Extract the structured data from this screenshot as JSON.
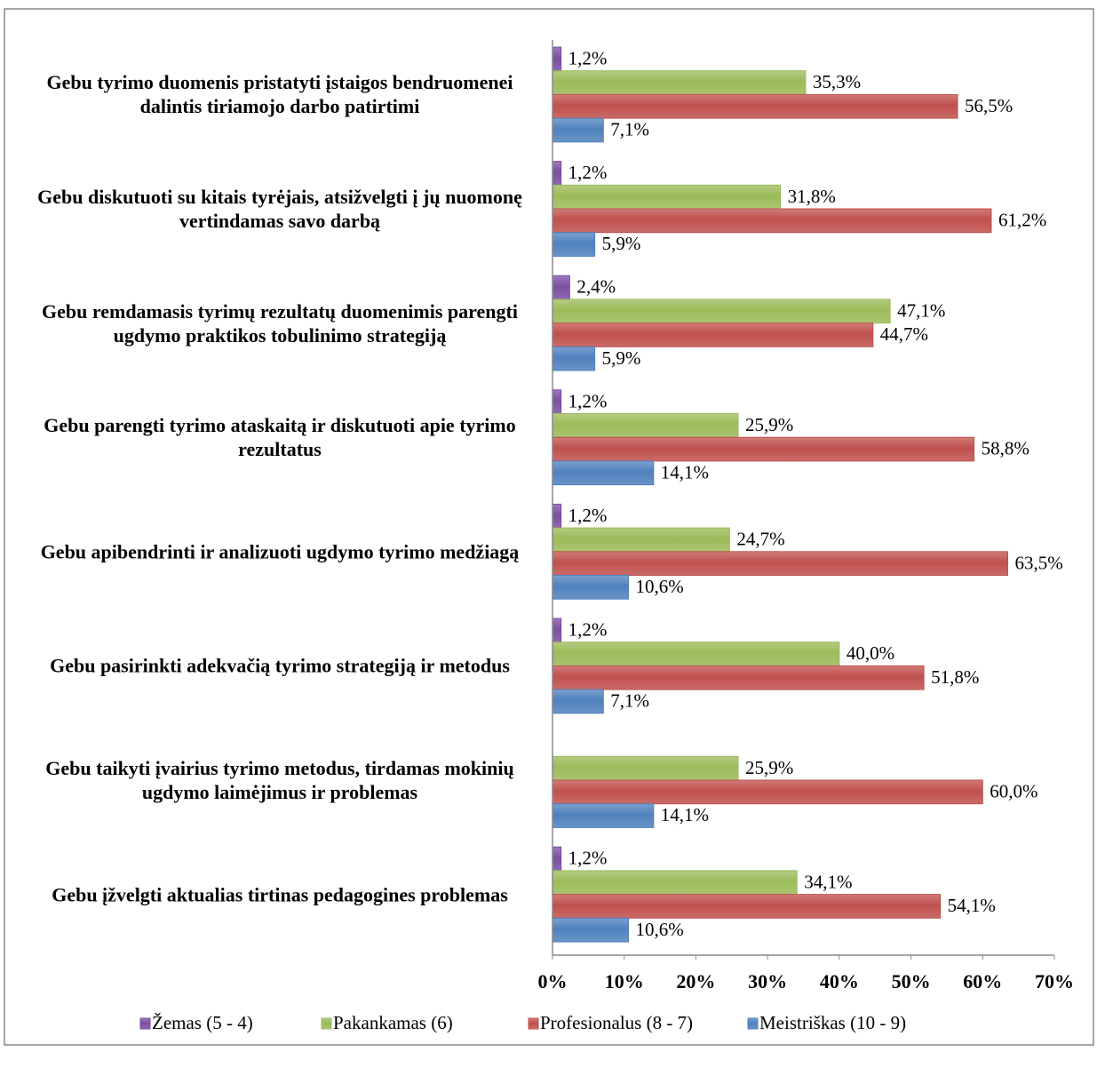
{
  "chart_data": {
    "type": "hbar",
    "categories": [
      "Gebu tyrimo duomenis pristatyti įstaigos bendruomenei dalintis tiriamojo darbo patirtimi",
      "Gebu diskutuoti su kitais tyrėjais, atsižvelgti į jų nuomonę vertindamas savo darbą",
      "Gebu remdamasis tyrimų rezultatų duomenimis parengti ugdymo praktikos tobulinimo strategiją",
      "Gebu parengti tyrimo ataskaitą ir diskutuoti apie tyrimo rezultatus",
      "Gebu apibendrinti ir analizuoti ugdymo tyrimo medžiagą",
      "Gebu pasirinkti adekvačią tyrimo strategiją ir metodus",
      "Gebu taikyti įvairius tyrimo metodus, tirdamas mokinių ugdymo laimėjimus ir problemas",
      "Gebu įžvelgti aktualias tirtinas pedagogines problemas"
    ],
    "series": [
      {
        "name": "Žemas (5 - 4)",
        "color": "#7b4ea3",
        "values": [
          1.2,
          1.2,
          2.4,
          1.2,
          1.2,
          1.2,
          null,
          1.2
        ],
        "value_labels": [
          "1,2%",
          "1,2%",
          "2,4%",
          "1,2%",
          "1,2%",
          "1,2%",
          null,
          "1,2%"
        ]
      },
      {
        "name": "Pakankamas (6)",
        "color": "#9bbb59",
        "values": [
          35.3,
          31.8,
          47.1,
          25.9,
          24.7,
          40.0,
          25.9,
          34.1
        ],
        "value_labels": [
          "35,3%",
          "31,8%",
          "47,1%",
          "25,9%",
          "24,7%",
          "40,0%",
          "25,9%",
          "34,1%"
        ]
      },
      {
        "name": "Profesionalus (8 - 7)",
        "color": "#c0504d",
        "values": [
          56.5,
          61.2,
          44.7,
          58.8,
          63.5,
          51.8,
          60.0,
          54.1
        ],
        "value_labels": [
          "56,5%",
          "61,2%",
          "44,7%",
          "58,8%",
          "63,5%",
          "51,8%",
          "60,0%",
          "54,1%"
        ]
      },
      {
        "name": "Meistriškas (10 - 9)",
        "color": "#4f81bd",
        "values": [
          7.1,
          5.9,
          5.9,
          14.1,
          10.6,
          7.1,
          14.1,
          10.6
        ],
        "value_labels": [
          "7,1%",
          "5,9%",
          "5,9%",
          "14,1%",
          "10,6%",
          "7,1%",
          "14,1%",
          "10,6%"
        ]
      }
    ],
    "xlim": [
      0,
      70
    ],
    "xticks": [
      {
        "value": 0,
        "label": "0%"
      },
      {
        "value": 10,
        "label": "10%"
      },
      {
        "value": 20,
        "label": "20%"
      },
      {
        "value": 30,
        "label": "30%"
      },
      {
        "value": 40,
        "label": "40%"
      },
      {
        "value": 50,
        "label": "50%"
      },
      {
        "value": 60,
        "label": "60%"
      },
      {
        "value": 70,
        "label": "70%"
      }
    ],
    "legend": "bottom"
  }
}
